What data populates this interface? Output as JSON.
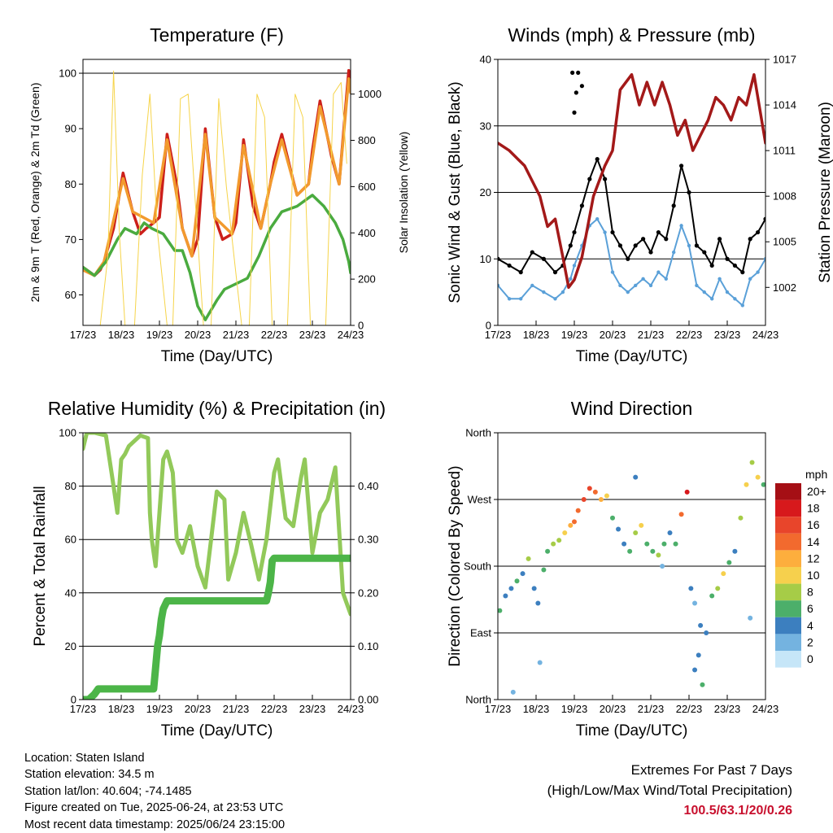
{
  "chart_data": [
    {
      "type": "line",
      "id": "temperature",
      "title": "Temperature (F)",
      "xlabel": "Time (Day/UTC)",
      "ylabel": "2m & 9m T (Red, Orange) & 2m Td (Green)",
      "y2label": "Solar Insolation (Yellow)",
      "x_ticks": [
        "17/23",
        "18/23",
        "19/23",
        "20/23",
        "21/23",
        "22/23",
        "23/23",
        "24/23"
      ],
      "xlim": [
        0,
        7
      ],
      "ylim": [
        54.5,
        102.5
      ],
      "y_ticks": [
        60,
        70,
        80,
        90,
        100
      ],
      "y2lim": [
        0,
        1150
      ],
      "y2_ticks": [
        0,
        200,
        400,
        600,
        800,
        1000
      ],
      "hlines": [
        100
      ],
      "series": [
        {
          "color": "#cc1f1a",
          "x": [
            0,
            0.3,
            0.45,
            0.55,
            0.8,
            1.05,
            1.3,
            1.5,
            1.65,
            1.85,
            2.0,
            2.2,
            2.45,
            2.6,
            2.85,
            3.0,
            3.2,
            3.45,
            3.65,
            3.9,
            4.0,
            4.2,
            4.45,
            4.65,
            4.9,
            5.0,
            5.2,
            5.45,
            5.6,
            5.9,
            6.0,
            6.2,
            6.5,
            6.7,
            6.95,
            7.0
          ],
          "values": [
            65,
            63.5,
            64.5,
            66,
            72,
            82,
            75,
            71,
            72,
            73,
            74,
            89,
            80,
            72,
            67,
            70,
            90,
            74,
            70,
            71,
            73,
            88,
            76,
            72,
            80,
            84,
            89,
            82,
            78,
            80,
            86,
            95,
            85,
            80,
            100.5,
            97
          ]
        },
        {
          "color": "#f29a2e",
          "x": [
            0,
            0.3,
            0.55,
            1.05,
            1.3,
            1.85,
            2.2,
            2.6,
            2.85,
            3.2,
            3.45,
            3.9,
            4.2,
            4.65,
            4.9,
            5.2,
            5.6,
            5.9,
            6.2,
            6.7,
            6.95,
            7.0
          ],
          "values": [
            64.5,
            63.5,
            66,
            81,
            75,
            73,
            88,
            72,
            67,
            89,
            74,
            71,
            87,
            72,
            80,
            88,
            78,
            80,
            94,
            80,
            99,
            96.5
          ]
        },
        {
          "color": "#4aab3f",
          "x": [
            0,
            0.3,
            0.6,
            0.9,
            1.1,
            1.4,
            1.6,
            1.8,
            2.1,
            2.4,
            2.6,
            2.8,
            3.0,
            3.2,
            3.5,
            3.7,
            4.0,
            4.3,
            4.6,
            4.9,
            5.2,
            5.6,
            6.0,
            6.3,
            6.6,
            6.8,
            6.95,
            7.0
          ],
          "values": [
            65,
            63.5,
            66,
            70,
            72,
            71,
            73,
            72,
            71,
            68,
            68,
            64,
            58,
            55.5,
            59,
            61,
            62,
            63,
            67,
            72,
            75,
            76,
            78,
            76,
            73,
            70,
            66,
            64
          ]
        },
        {
          "color": "#f6d44a",
          "axis": "y2",
          "x": [
            0.25,
            0.45,
            0.65,
            0.8,
            0.95,
            1.1,
            1.35,
            1.55,
            1.75,
            1.95,
            2.2,
            2.35,
            2.55,
            2.75,
            2.95,
            3.15,
            3.35,
            3.55,
            3.75,
            3.95,
            4.15,
            4.35,
            4.55,
            4.75,
            4.95,
            5.15,
            5.35,
            5.55,
            5.75,
            5.95,
            6.15,
            6.35,
            6.55,
            6.75,
            6.9
          ],
          "values": [
            0,
            0,
            300,
            1100,
            400,
            0,
            0,
            650,
            1000,
            400,
            0,
            0,
            980,
            1000,
            500,
            0,
            0,
            980,
            600,
            300,
            0,
            0,
            1000,
            900,
            0,
            0,
            0,
            1000,
            900,
            0,
            0,
            0,
            1000,
            1050,
            700
          ]
        }
      ]
    },
    {
      "type": "scatter",
      "id": "winds",
      "title": "Winds (mph) & Pressure (mb)",
      "xlabel": "Time (Day/UTC)",
      "ylabel": "Sonic Wind & Gust (Blue, Black)",
      "y2label": "Station Pressure (Maroon)",
      "x_ticks": [
        "17/23",
        "18/23",
        "19/23",
        "20/23",
        "21/23",
        "22/23",
        "23/23",
        "24/23"
      ],
      "xlim": [
        0,
        7
      ],
      "ylim": [
        0,
        40
      ],
      "y_ticks": [
        0,
        10,
        20,
        30,
        40
      ],
      "y2lim": [
        999.5,
        1017
      ],
      "y2_ticks": [
        1002,
        1005,
        1008,
        1011,
        1014,
        1017
      ],
      "hlines": [
        10,
        20,
        30,
        40
      ],
      "series": [
        {
          "color": "#000000",
          "x": [
            0,
            0.3,
            0.6,
            0.9,
            1.2,
            1.5,
            1.7,
            1.9,
            2.0,
            2.2,
            2.4,
            2.6,
            2.8,
            3.0,
            3.2,
            3.4,
            3.6,
            3.8,
            4.0,
            4.2,
            4.4,
            4.6,
            4.8,
            5.0,
            5.2,
            5.4,
            5.6,
            5.8,
            6.0,
            6.2,
            6.4,
            6.6,
            6.8,
            7.0
          ],
          "values": [
            10,
            9,
            8,
            11,
            10,
            8,
            9,
            12,
            14,
            18,
            22,
            25,
            22,
            14,
            12,
            10,
            12,
            13,
            11,
            14,
            13,
            18,
            24,
            20,
            12,
            11,
            9,
            13,
            10,
            9,
            8,
            13,
            14,
            16
          ]
        },
        {
          "color": "#5aa0d8",
          "x": [
            0,
            0.3,
            0.6,
            0.9,
            1.2,
            1.5,
            1.7,
            1.9,
            2.0,
            2.2,
            2.4,
            2.6,
            2.8,
            3.0,
            3.2,
            3.4,
            3.6,
            3.8,
            4.0,
            4.2,
            4.4,
            4.6,
            4.8,
            5.0,
            5.2,
            5.4,
            5.6,
            5.8,
            6.0,
            6.2,
            6.4,
            6.6,
            6.8,
            7.0
          ],
          "values": [
            6,
            4,
            4,
            6,
            5,
            4,
            5,
            7,
            9,
            12,
            15,
            16,
            14,
            8,
            6,
            5,
            6,
            7,
            6,
            8,
            7,
            11,
            15,
            12,
            6,
            5,
            4,
            7,
            5,
            4,
            3,
            7,
            8,
            10
          ]
        },
        {
          "color": "#a31919",
          "axis": "y2",
          "x": [
            0,
            0.3,
            0.5,
            0.7,
            0.9,
            1.1,
            1.3,
            1.5,
            1.7,
            1.85,
            2.0,
            2.2,
            2.5,
            2.8,
            3.0,
            3.2,
            3.5,
            3.7,
            3.9,
            4.1,
            4.3,
            4.5,
            4.7,
            4.9,
            5.1,
            5.3,
            5.5,
            5.7,
            5.9,
            6.1,
            6.3,
            6.5,
            6.7,
            6.9,
            7.0
          ],
          "values": [
            1011.5,
            1011,
            1010.5,
            1010,
            1009,
            1008,
            1006,
            1006.5,
            1004,
            1002,
            1002.5,
            1004,
            1008,
            1010,
            1011,
            1015,
            1016,
            1014,
            1015.5,
            1014,
            1015.5,
            1014,
            1012,
            1013,
            1011,
            1012,
            1013,
            1014.5,
            1014,
            1013,
            1014.5,
            1014,
            1016,
            1013,
            1011.5
          ]
        }
      ],
      "outliers": {
        "x": [
          1.95,
          2.0,
          2.05,
          2.1,
          2.2
        ],
        "values": [
          38,
          32,
          35,
          38,
          36
        ]
      }
    },
    {
      "type": "line",
      "id": "humidity",
      "title": "Relative Humidity (%) & Precipitation (in)",
      "xlabel": "Time (Day/UTC)",
      "ylabel": "Percent & Total Rainfall",
      "x_ticks": [
        "17/23",
        "18/23",
        "19/23",
        "20/23",
        "21/23",
        "22/23",
        "23/23",
        "24/23"
      ],
      "xlim": [
        0,
        7
      ],
      "ylim": [
        0,
        100
      ],
      "y_ticks": [
        0,
        20,
        40,
        60,
        80,
        100
      ],
      "y2lim": [
        0,
        0.5
      ],
      "y2_ticks": [
        "0.00",
        "0.10",
        "0.20",
        "0.30",
        "0.40"
      ],
      "hlines": [
        20,
        40,
        60,
        80,
        100
      ],
      "series": [
        {
          "color": "#92c95a",
          "x": [
            0,
            0.1,
            0.3,
            0.6,
            0.8,
            0.9,
            1.0,
            1.1,
            1.2,
            1.5,
            1.7,
            1.75,
            1.8,
            1.85,
            1.9,
            2.0,
            2.1,
            2.2,
            2.35,
            2.45,
            2.6,
            2.8,
            3.0,
            3.2,
            3.35,
            3.5,
            3.7,
            3.8,
            4.0,
            4.2,
            4.4,
            4.6,
            4.8,
            5.0,
            5.1,
            5.3,
            5.5,
            5.7,
            5.8,
            6.0,
            6.2,
            6.4,
            6.6,
            6.8,
            7.0
          ],
          "values": [
            94,
            100,
            100,
            99,
            80,
            70,
            90,
            92,
            95,
            99,
            98,
            70,
            60,
            55,
            50,
            70,
            90,
            93,
            85,
            60,
            55,
            65,
            50,
            42,
            60,
            78,
            75,
            45,
            55,
            70,
            58,
            45,
            60,
            85,
            90,
            68,
            65,
            83,
            90,
            55,
            70,
            75,
            87,
            40,
            32
          ]
        },
        {
          "color": "#4cb548",
          "axis": "y2",
          "x": [
            0,
            0.15,
            0.3,
            0.4,
            0.6,
            1.0,
            1.5,
            1.85,
            1.9,
            1.95,
            2.0,
            2.05,
            2.1,
            2.2,
            2.5,
            3.5,
            4.8,
            4.85,
            4.9,
            4.95,
            5.0,
            7.0
          ],
          "values": [
            0.0,
            0.0,
            0.01,
            0.02,
            0.02,
            0.02,
            0.02,
            0.02,
            0.06,
            0.1,
            0.12,
            0.15,
            0.17,
            0.185,
            0.185,
            0.185,
            0.185,
            0.2,
            0.22,
            0.26,
            0.265,
            0.265
          ]
        }
      ]
    },
    {
      "type": "scatter",
      "id": "wind-direction",
      "title": "Wind Direction",
      "xlabel": "Time (Day/UTC)",
      "ylabel": "Direction (Colored By Speed)",
      "x_ticks": [
        "17/23",
        "18/23",
        "19/23",
        "20/23",
        "21/23",
        "22/23",
        "23/23",
        "24/23"
      ],
      "xlim": [
        0,
        7
      ],
      "ylim": [
        0,
        360
      ],
      "y_ticks": [
        "North",
        "East",
        "South",
        "West",
        "North"
      ],
      "hlines": [
        90,
        180,
        270,
        360
      ],
      "x": [
        0.05,
        0.2,
        0.35,
        0.5,
        0.65,
        0.8,
        0.95,
        1.05,
        1.2,
        1.3,
        1.45,
        1.6,
        1.75,
        1.9,
        2.0,
        2.1,
        2.25,
        2.4,
        2.55,
        2.7,
        2.85,
        3.0,
        3.15,
        3.3,
        3.45,
        3.6,
        3.75,
        3.9,
        4.05,
        4.2,
        4.35,
        4.5,
        4.65,
        4.8,
        4.95,
        5.05,
        5.15,
        5.3,
        5.45,
        5.6,
        5.75,
        5.9,
        6.05,
        6.2,
        6.35,
        6.5,
        6.65,
        6.8,
        6.95,
        0.4,
        1.1,
        3.6,
        5.15,
        5.25,
        5.35,
        4.3,
        6.6
      ],
      "values": [
        120,
        140,
        150,
        160,
        170,
        190,
        150,
        130,
        175,
        200,
        210,
        215,
        225,
        235,
        240,
        255,
        270,
        285,
        280,
        270,
        275,
        245,
        230,
        210,
        200,
        225,
        235,
        210,
        200,
        195,
        210,
        225,
        210,
        250,
        280,
        150,
        130,
        100,
        90,
        140,
        150,
        170,
        185,
        200,
        245,
        290,
        320,
        300,
        290,
        10,
        50,
        300,
        40,
        60,
        20,
        180,
        110
      ],
      "speeds": [
        6,
        4,
        3,
        5,
        4,
        8,
        3,
        4,
        6,
        5,
        7,
        8,
        10,
        11,
        13,
        14,
        15,
        16,
        13,
        12,
        10,
        6,
        4,
        3,
        5,
        7,
        9,
        6,
        5,
        7,
        6,
        4,
        6,
        14,
        17,
        3,
        2,
        3,
        4,
        6,
        8,
        9,
        6,
        4,
        8,
        10,
        8,
        9,
        6,
        2,
        2,
        3,
        4,
        3,
        5,
        2,
        2
      ],
      "legend": {
        "title": "mph",
        "labels": [
          "20+",
          "18",
          "16",
          "14",
          "12",
          "10",
          "8",
          "6",
          "4",
          "2",
          "0"
        ],
        "colors": [
          "#a50f15",
          "#d7191c",
          "#e8452b",
          "#f26a2e",
          "#fdae3d",
          "#f6d04d",
          "#a6cc47",
          "#4caf6a",
          "#3c7fbf",
          "#74b3e0",
          "#c6e6f8"
        ]
      }
    }
  ],
  "footer": {
    "location": "Location: Staten Island",
    "elevation": "Station elevation: 34.5 m",
    "latlon": "Station lat/lon: 40.604; -74.1485",
    "created": "Figure created on Tue, 2025-06-24, at 23:53 UTC",
    "recent": "Most recent data timestamp: 2025/06/24 23:15:00",
    "extremes_title": "Extremes For Past 7 Days",
    "extremes_subtitle": "(High/Low/Max Wind/Total Precipitation)",
    "extremes_values": "100.5/63.1/20/0.26"
  }
}
